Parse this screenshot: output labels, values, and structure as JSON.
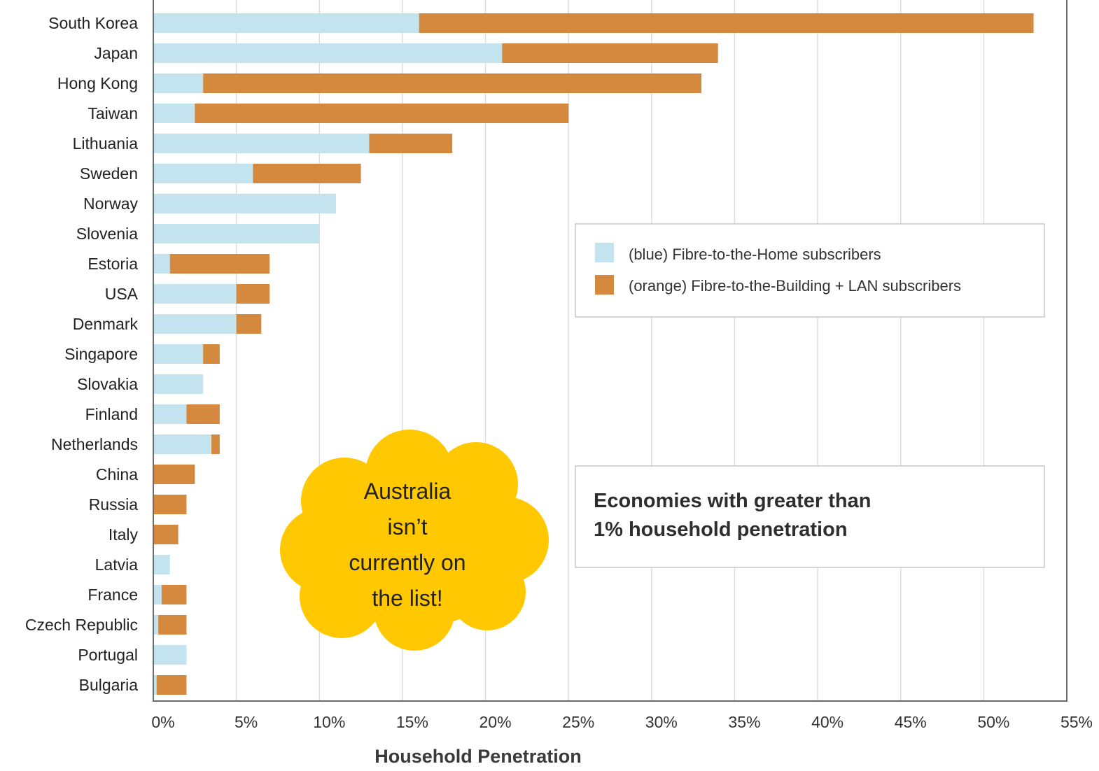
{
  "chart_data": {
    "type": "bar",
    "orientation": "horizontal",
    "stacked": true,
    "categories": [
      "South Korea",
      "Japan",
      "Hong Kong",
      "Taiwan",
      "Lithuania",
      "Sweden",
      "Norway",
      "Slovenia",
      "Estoria",
      "USA",
      "Denmark",
      "Singapore",
      "Slovakia",
      "Finland",
      "Netherlands",
      "China",
      "Russia",
      "Italy",
      "Latvia",
      "France",
      "Czech Republic",
      "Portugal",
      "Bulgaria"
    ],
    "series": [
      {
        "name": "(blue) Fibre-to-the-Home subscribers",
        "color": "#c3e3ef",
        "values": [
          16.0,
          21.0,
          3.0,
          2.5,
          13.0,
          6.0,
          11.0,
          10.0,
          1.0,
          5.0,
          5.0,
          3.0,
          3.0,
          2.0,
          3.5,
          0,
          0,
          0,
          1.0,
          0.5,
          0.3,
          2.0,
          0.2
        ]
      },
      {
        "name": "(orange) Fibre-to-the-Building + LAN subscribers",
        "color": "#d4893f",
        "values": [
          37.0,
          13.0,
          30.0,
          22.5,
          5.0,
          6.5,
          0,
          0,
          6.0,
          2.0,
          1.5,
          1.0,
          0,
          2.0,
          0.5,
          2.5,
          2.0,
          1.5,
          0,
          1.5,
          1.7,
          0,
          1.8
        ]
      }
    ],
    "xlabel": "Household Penetration",
    "ylabel": "",
    "xlim": [
      0,
      55
    ],
    "ticks": [
      "0%",
      "5%",
      "10%",
      "15%",
      "20%",
      "25%",
      "30%",
      "35%",
      "40%",
      "45%",
      "50%",
      "55%"
    ],
    "grid": "vertical",
    "legend_placement": "right",
    "annotation": "Economies with greater than 1% household penetration"
  },
  "callout": {
    "lines": [
      "Australia",
      "isn’t",
      "currently on",
      "the list!"
    ],
    "color": "#ffc800"
  }
}
